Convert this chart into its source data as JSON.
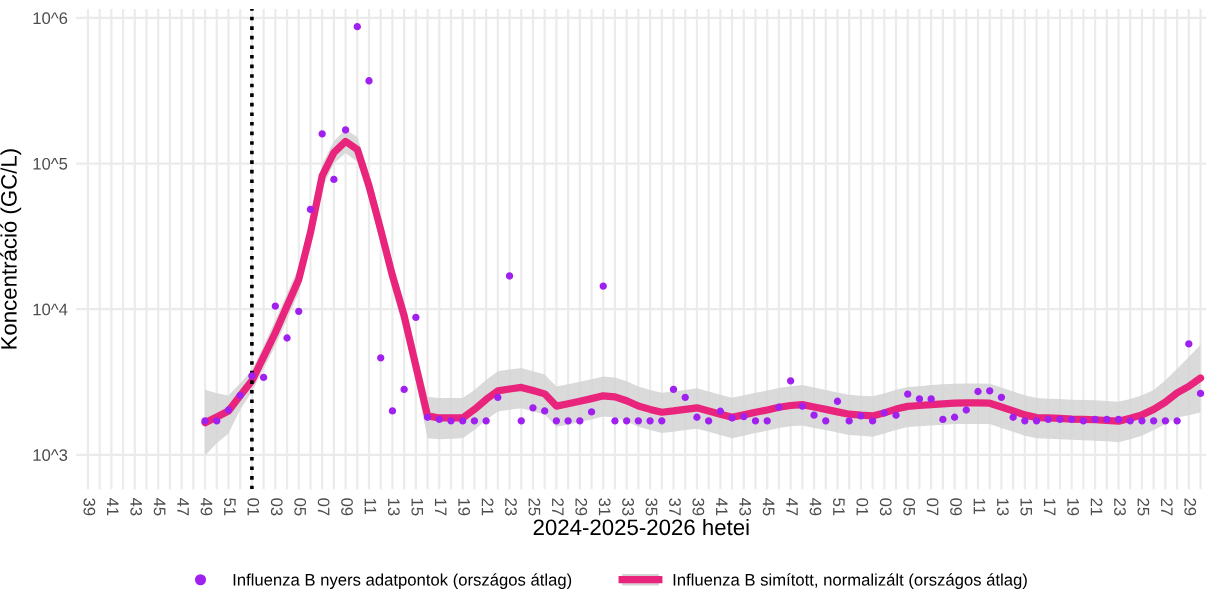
{
  "chart_data": {
    "type": "scatter",
    "xlabel": "2024-2025-2026 hetei",
    "ylabel": "Koncentráció (GC/L)",
    "log": "y",
    "grid": true,
    "legend": "bottom",
    "marker": "circle",
    "categories": [
      "39",
      null,
      "41",
      null,
      "43",
      null,
      "45",
      null,
      "47",
      null,
      "49",
      null,
      "51",
      null,
      "01",
      null,
      "03",
      null,
      "05",
      null,
      "07",
      null,
      "09",
      null,
      "11",
      null,
      "13",
      null,
      "15",
      null,
      "17",
      null,
      "19",
      null,
      "21",
      null,
      "23",
      null,
      "25",
      null,
      "27",
      null,
      "29",
      null,
      "31",
      null,
      "33",
      null,
      "35",
      null,
      "37",
      null,
      "39",
      null,
      "41",
      null,
      "43",
      null,
      "45",
      null,
      "47",
      null,
      "49",
      null,
      "51",
      null,
      "01",
      null,
      "03",
      null,
      "05",
      null,
      "07",
      null,
      "09",
      null,
      "11",
      null,
      "13",
      null,
      "15",
      null,
      "17",
      null,
      "19",
      null,
      "21",
      null,
      "23",
      null,
      "25",
      null,
      "27",
      null,
      "29",
      null
    ],
    "ylim": [
      580,
      1150000
    ],
    "yticks": [
      {
        "value": 1000,
        "label": "10^3"
      },
      {
        "value": 10000,
        "label": "10^4"
      },
      {
        "value": 100000,
        "label": "10^5"
      },
      {
        "value": 1000000,
        "label": "10^6"
      }
    ],
    "ref_lines": [
      {
        "axis": "x",
        "value": "01",
        "color": "#000000",
        "line_style": "dotted"
      }
    ],
    "series": [
      {
        "name": "Influenza B nyers adatpontok (országos átlag)",
        "color": "#a020f0",
        "values": [
          null,
          null,
          null,
          null,
          null,
          null,
          null,
          null,
          null,
          null,
          1710,
          1710,
          2030,
          2560,
          3480,
          3400,
          10500,
          6340,
          9660,
          48400,
          160000,
          77800,
          170000,
          871000,
          370000,
          4630,
          2000,
          2810,
          8790,
          1810,
          1750,
          1710,
          1710,
          1710,
          1710,
          2480,
          16900,
          1710,
          2100,
          2000,
          1710,
          1710,
          1710,
          1970,
          14400,
          1710,
          1710,
          1710,
          1710,
          1710,
          2810,
          2480,
          1810,
          1710,
          1990,
          1790,
          1830,
          1710,
          1710,
          2120,
          3220,
          2160,
          1870,
          1710,
          2330,
          1710,
          1850,
          1710,
          1940,
          1870,
          2610,
          2420,
          2420,
          1750,
          1810,
          2030,
          2720,
          2750,
          2480,
          1810,
          1710,
          1710,
          1750,
          1750,
          1750,
          1710,
          1750,
          1750,
          1750,
          1710,
          1710,
          1710,
          1710,
          1710,
          5770,
          2640
        ]
      },
      {
        "name": "Influenza B simított, normalizált (országos átlag)",
        "type": "line",
        "color": "#e8247c",
        "line_style": "solid",
        "marker": "none",
        "values": [
          null,
          null,
          null,
          null,
          null,
          null,
          null,
          null,
          null,
          null,
          1660,
          1820,
          2000,
          2550,
          3220,
          4700,
          6890,
          10500,
          16000,
          33500,
          82200,
          119000,
          142000,
          125000,
          70200,
          35000,
          17000,
          9000,
          4070,
          1850,
          1790,
          1790,
          1790,
          2050,
          2400,
          2750,
          2830,
          2900,
          2760,
          2620,
          2160,
          2240,
          2330,
          2430,
          2540,
          2500,
          2350,
          2160,
          2050,
          1960,
          2000,
          2050,
          2100,
          2000,
          1900,
          1810,
          1880,
          1960,
          2030,
          2120,
          2180,
          2210,
          2130,
          2050,
          1970,
          1900,
          1870,
          1850,
          1940,
          2060,
          2150,
          2180,
          2210,
          2240,
          2260,
          2270,
          2270,
          2260,
          2130,
          2000,
          1880,
          1800,
          1790,
          1780,
          1760,
          1750,
          1740,
          1720,
          1700,
          1780,
          1880,
          2050,
          2300,
          2660,
          2950,
          3370
        ],
        "lower": [
          null,
          null,
          null,
          null,
          null,
          null,
          null,
          null,
          null,
          null,
          990,
          1200,
          1400,
          2050,
          2700,
          3900,
          5600,
          8500,
          13000,
          27000,
          68000,
          100000,
          118000,
          103000,
          57000,
          28000,
          13500,
          7200,
          3200,
          1300,
          1280,
          1290,
          1300,
          1480,
          1730,
          1980,
          2040,
          2090,
          1990,
          1890,
          1560,
          1610,
          1680,
          1750,
          1830,
          1800,
          1690,
          1560,
          1480,
          1410,
          1440,
          1480,
          1510,
          1440,
          1370,
          1300,
          1350,
          1410,
          1460,
          1530,
          1570,
          1590,
          1530,
          1480,
          1420,
          1370,
          1350,
          1330,
          1400,
          1480,
          1550,
          1570,
          1590,
          1610,
          1630,
          1630,
          1630,
          1630,
          1530,
          1440,
          1350,
          1300,
          1290,
          1280,
          1270,
          1260,
          1250,
          1240,
          1220,
          1280,
          1350,
          1480,
          1620,
          1800,
          1870,
          1950
        ],
        "upper": [
          null,
          null,
          null,
          null,
          null,
          null,
          null,
          null,
          null,
          null,
          2800,
          2650,
          2550,
          3100,
          3800,
          5600,
          8400,
          12800,
          19500,
          41000,
          99000,
          142000,
          172000,
          152000,
          86000,
          43000,
          20500,
          11300,
          5200,
          2500,
          2450,
          2450,
          2450,
          2790,
          3260,
          3740,
          3850,
          3940,
          3750,
          3560,
          2940,
          3050,
          3170,
          3300,
          3450,
          3400,
          3200,
          2940,
          2790,
          2670,
          2720,
          2790,
          2860,
          2720,
          2580,
          2460,
          2560,
          2670,
          2760,
          2880,
          2960,
          3010,
          2900,
          2790,
          2680,
          2580,
          2540,
          2520,
          2640,
          2800,
          2920,
          2960,
          3010,
          3050,
          3070,
          3090,
          3090,
          3070,
          2900,
          2720,
          2560,
          2450,
          2430,
          2420,
          2390,
          2380,
          2370,
          2340,
          2310,
          2420,
          2560,
          2790,
          3250,
          3900,
          4700,
          5690
        ]
      }
    ]
  }
}
